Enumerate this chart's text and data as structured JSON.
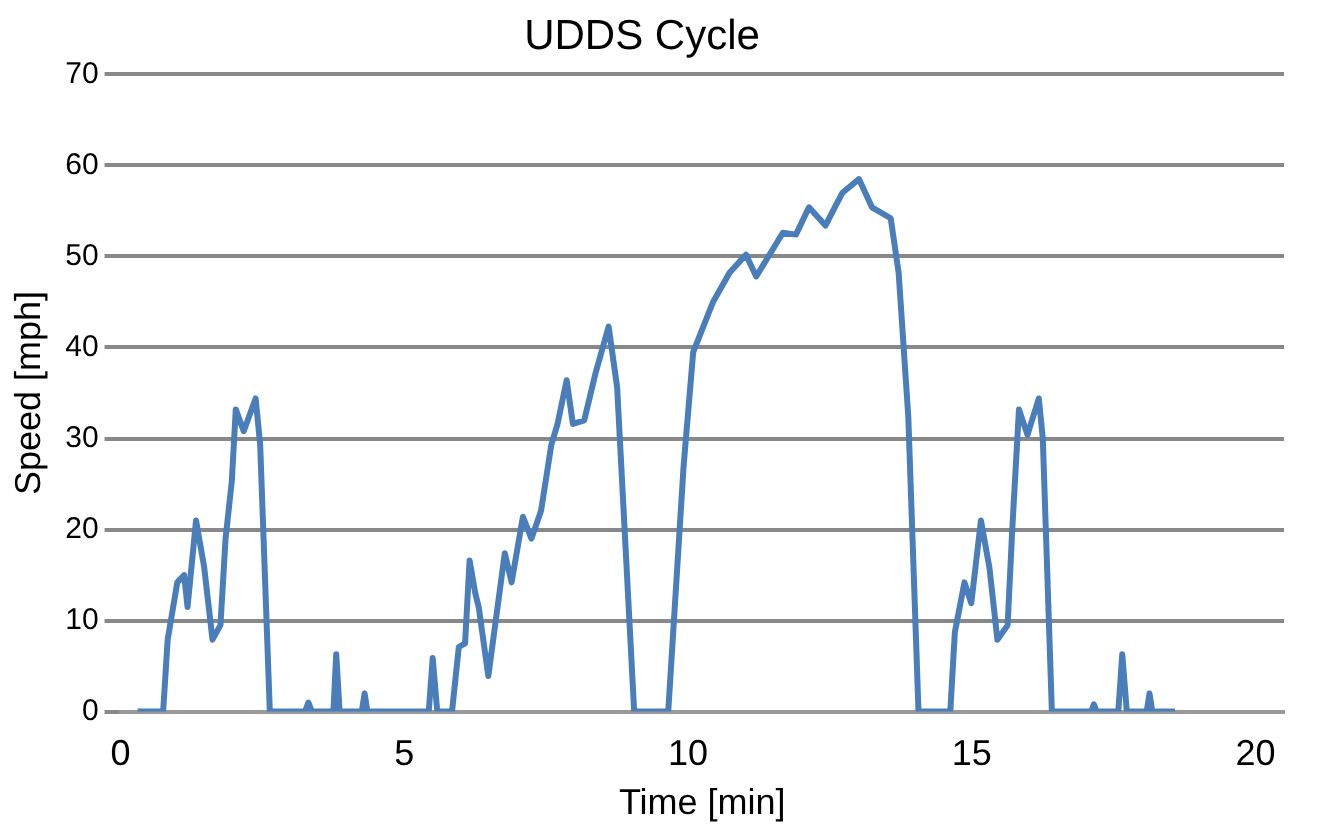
{
  "chart_data": {
    "type": "line",
    "title": "UDDS Cycle",
    "xlabel": "Time [min]",
    "ylabel": "Speed [mph]",
    "xlim": [
      0,
      20.5
    ],
    "xticks": [
      0,
      5,
      10,
      15,
      20
    ],
    "ylim": [
      0,
      70
    ],
    "yticks": [
      0,
      10,
      20,
      30,
      40,
      50,
      60,
      70
    ],
    "grid": "y",
    "marker": "none",
    "series": [
      {
        "color": "#4a7ebb",
        "x": [
          0.3,
          0.75,
          0.83,
          1.0,
          1.12,
          1.18,
          1.33,
          1.47,
          1.62,
          1.76,
          1.85,
          1.96,
          2.03,
          2.17,
          2.38,
          2.46,
          2.63,
          3.25,
          3.31,
          3.37,
          3.75,
          3.8,
          3.86,
          4.25,
          4.3,
          4.35,
          5.43,
          5.5,
          5.58,
          5.69,
          5.84,
          5.96,
          6.07,
          6.15,
          6.25,
          6.31,
          6.48,
          6.77,
          6.89,
          7.09,
          7.24,
          7.41,
          7.59,
          7.7,
          7.86,
          7.97,
          8.17,
          8.37,
          8.6,
          8.75,
          9.05,
          9.65,
          9.92,
          10.09,
          10.44,
          10.73,
          11.02,
          11.2,
          11.67,
          11.9,
          12.13,
          12.42,
          12.72,
          13.01,
          13.24,
          13.57,
          13.71,
          13.88,
          14.06,
          14.62,
          14.7,
          14.87,
          14.99,
          15.16,
          15.31,
          15.45,
          15.63,
          15.71,
          15.83,
          15.98,
          16.18,
          16.25,
          16.41,
          17.1,
          17.15,
          17.2,
          17.58,
          17.65,
          17.73,
          18.08,
          18.13,
          18.18,
          18.58
        ],
        "values": [
          0,
          0,
          7.9,
          14.2,
          15,
          11.5,
          21,
          16,
          7.9,
          9.5,
          19,
          25.3,
          33.2,
          30.8,
          34.4,
          29.3,
          0,
          0,
          1,
          0,
          0,
          6.3,
          0,
          0,
          2,
          0,
          0,
          5.9,
          0,
          0,
          0,
          7.1,
          7.5,
          16.6,
          13,
          11.5,
          3.9,
          17.4,
          14.2,
          21.4,
          19,
          22.1,
          29.3,
          31.6,
          36.4,
          31.6,
          32,
          37.2,
          42.3,
          35.6,
          0,
          0,
          26.9,
          39.5,
          45,
          48.2,
          50.2,
          47.8,
          52.6,
          52.4,
          55.4,
          53.4,
          57,
          58.5,
          55.4,
          54.2,
          48.2,
          32.4,
          0,
          0,
          8.7,
          14.2,
          11.9,
          21,
          15.8,
          7.9,
          9.5,
          19.8,
          33.2,
          30.4,
          34.4,
          30,
          0,
          0,
          0.8,
          0,
          0,
          6.3,
          0,
          0,
          2,
          0,
          0
        ]
      }
    ]
  }
}
